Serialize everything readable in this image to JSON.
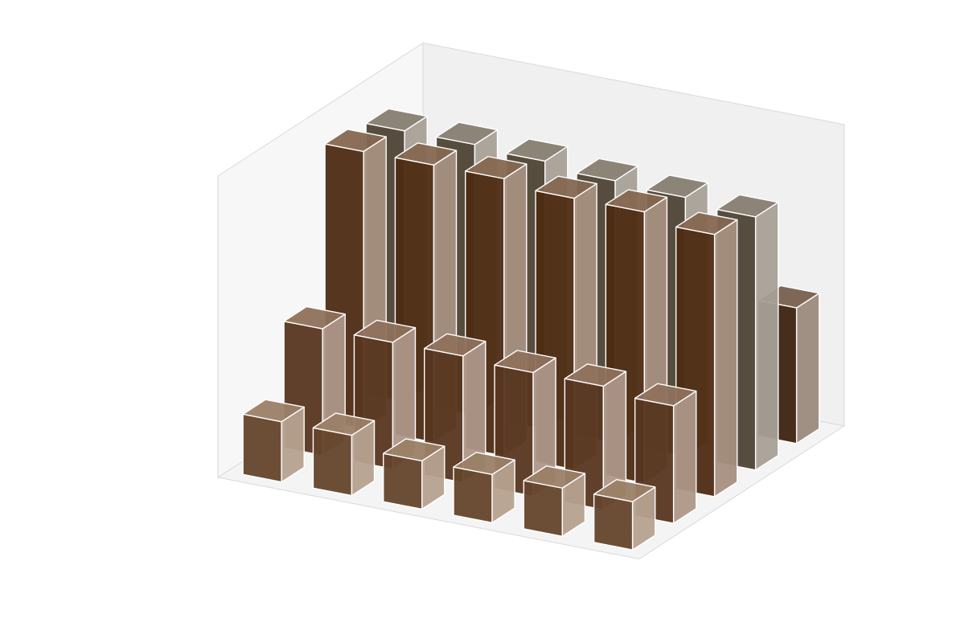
{
  "chart_data": {
    "type": "bar3d",
    "title": "",
    "xlabel": "",
    "ylabel": "",
    "zlabel": "",
    "grid": false,
    "zlim": [
      0,
      10
    ],
    "series": [
      {
        "row": 1,
        "color": "#7a5434",
        "values": [
          2.0,
          2.0,
          1.6,
          1.6,
          1.6,
          1.6
        ]
      },
      {
        "row": 2,
        "color": "#6a4226",
        "values": [
          4.2,
          4.2,
          4.2,
          4.1,
          4.1,
          3.9
        ]
      },
      {
        "row": 3,
        "color": "#5e3416",
        "values": [
          9.2,
          9.2,
          9.2,
          9.0,
          9.0,
          8.7
        ]
      },
      {
        "row": 4,
        "color": "#5f5241",
        "values": [
          9.0,
          9.0,
          8.9,
          8.7,
          8.6,
          8.4
        ]
      },
      {
        "row": 5,
        "color": "#4a2a12",
        "values": [
          null,
          null,
          null,
          null,
          null,
          4.5
        ]
      }
    ],
    "palette": {
      "pane_floor": "#f4f4f4",
      "pane_back": "#f0f0f0",
      "pane_left": "#f7f7f7",
      "pane_edge": "#d9d9d9",
      "edge": "#ffffff"
    }
  }
}
